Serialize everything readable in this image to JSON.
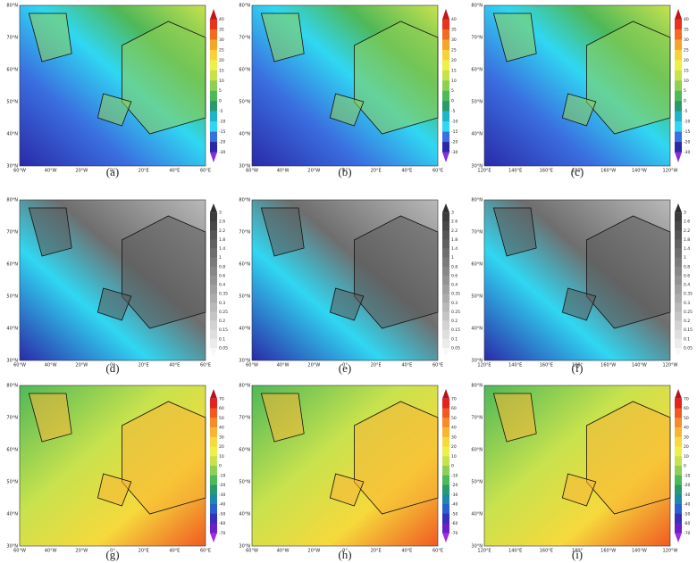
{
  "columns": [
    {
      "x_labels": [
        "60°W",
        "40°W",
        "20°W",
        "0°",
        "20°E",
        "40°E",
        "60°E"
      ],
      "y_labels": [
        "30°N",
        "40°N",
        "50°N",
        "60°N",
        "70°N",
        "80°N"
      ]
    },
    {
      "x_labels": [
        "60°W",
        "40°W",
        "20°W",
        "0°",
        "20°E",
        "40°E",
        "60°E"
      ],
      "y_labels": [
        "30°N",
        "40°N",
        "50°N",
        "60°N",
        "70°N",
        "80°N"
      ]
    },
    {
      "x_labels": [
        "120°E",
        "140°E",
        "160°E",
        "180°",
        "160°W",
        "140°W",
        "120°W"
      ],
      "y_labels": [
        "30°N",
        "40°N",
        "50°N",
        "60°N",
        "70°N",
        "80°N"
      ]
    }
  ],
  "rows": [
    {
      "colorbar": [
        "40",
        "35",
        "30",
        "25",
        "20",
        "15",
        "10",
        "5",
        "0",
        "-5",
        "-10",
        "-15",
        "-20",
        "-30"
      ],
      "colors": [
        "#c0161c",
        "#e8341e",
        "#f26b21",
        "#f7a42b",
        "#f7d23a",
        "#eef04a",
        "#c8e24e",
        "#8fcf55",
        "#4fb858",
        "#2a9a6c",
        "#1fb5c9",
        "#30d7f2",
        "#3a6fe0",
        "#2a2aa8",
        "#8a2be2"
      ]
    },
    {
      "colorbar": [
        "3",
        "2.6",
        "2.2",
        "1.8",
        "1.4",
        "1",
        "0.8",
        "0.6",
        "0.4",
        "0.35",
        "0.3",
        "0.25",
        "0.2",
        "0.15",
        "0.1",
        "0.05"
      ],
      "colors": [
        "#303030",
        "#3c3c3c",
        "#484848",
        "#555555",
        "#616161",
        "#6e6e6e",
        "#7a7a7a",
        "#878787",
        "#939393",
        "#a0a0a0",
        "#acacac",
        "#b9b9b9",
        "#c5c5c5",
        "#d2d2d2",
        "#dedede",
        "#ebebeb",
        "#f7f7f7"
      ]
    },
    {
      "colorbar": [
        "70",
        "60",
        "50",
        "40",
        "30",
        "20",
        "10",
        "0",
        "-10",
        "-20",
        "-30",
        "-40",
        "-50",
        "-60",
        "-70"
      ],
      "colors": [
        "#b4141c",
        "#e2231e",
        "#f05a22",
        "#f68b2a",
        "#f8b534",
        "#f6d93c",
        "#eef04a",
        "#c8e24e",
        "#8fcf55",
        "#4fb858",
        "#2a9a6c",
        "#1f88a8",
        "#2b5fd0",
        "#3a2fb8",
        "#6a1fc8",
        "#a22be2"
      ]
    }
  ],
  "panels": [
    "(a)",
    "(b)",
    "(c)",
    "(d)",
    "(e)",
    "(f)",
    "(g)",
    "(h)",
    "(i)"
  ]
}
